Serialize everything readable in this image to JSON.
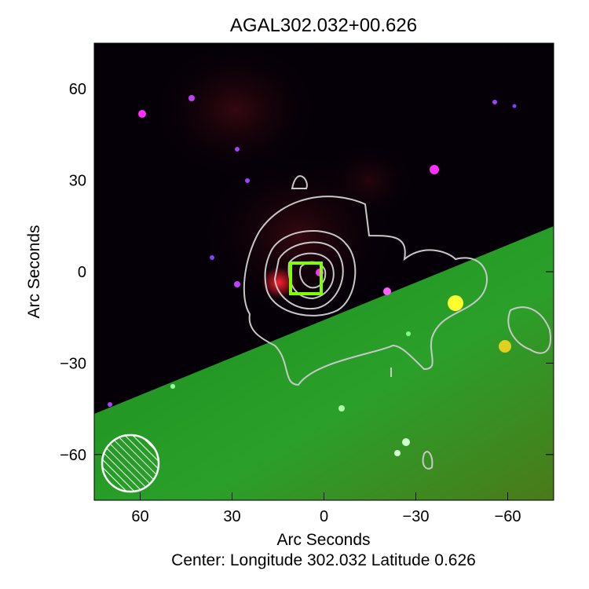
{
  "chart_data": {
    "type": "image",
    "title": "AGAL302.032+00.626",
    "xlabel": "Arc Seconds",
    "ylabel": "Arc Seconds",
    "caption": "Center:  Longitude 302.032 Latitude 0.626",
    "xlim": [
      75,
      -75
    ],
    "ylim": [
      -75,
      75
    ],
    "xticks": [
      60,
      30,
      0,
      -30,
      -60
    ],
    "yticks": [
      60,
      30,
      0,
      -30,
      -60
    ],
    "xtick_labels": [
      "60",
      "30",
      "0",
      "−30",
      "−60"
    ],
    "ytick_labels": [
      "60",
      "30",
      "0",
      "−30",
      "−60"
    ],
    "grid": false,
    "marker": {
      "shape": "square",
      "center": [
        5,
        -2
      ],
      "size": 10,
      "color": "#7fff00"
    },
    "beam": {
      "center": [
        63,
        -62
      ],
      "radius": 9.5,
      "style": "hatched",
      "color": "#ffffff"
    },
    "contour_color": "#c8c8c8",
    "colors": {
      "background_upper": "#050008",
      "background_lower": "#1f8a1f",
      "emission": "#ff2030"
    }
  }
}
